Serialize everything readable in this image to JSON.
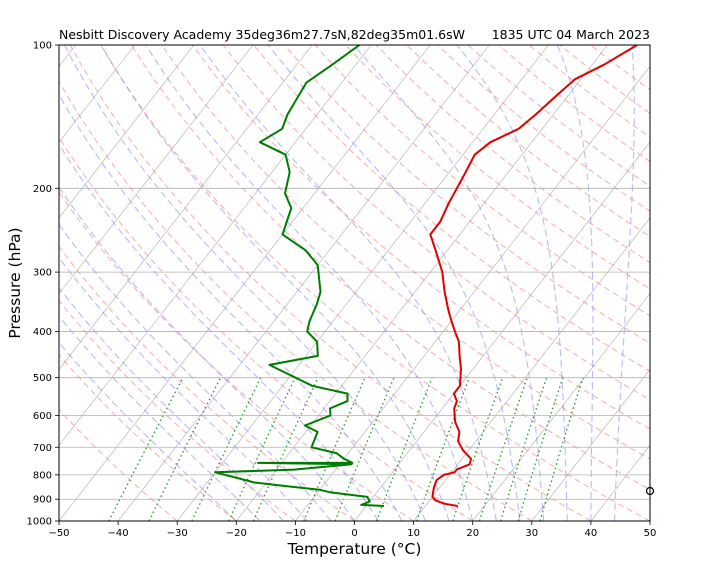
{
  "chart_data": {
    "type": "line",
    "subtype": "skew-T log-P sounding",
    "title_left": "Nesbitt Discovery Academy 35deg36m27.7sN,82deg35m01.6sW",
    "title_right": "1835 UTC 04 March 2023",
    "xlabel": "Temperature (°C)",
    "ylabel": "Pressure (hPa)",
    "xlim": [
      -50,
      50
    ],
    "ylim": [
      1000,
      100
    ],
    "y_scale": "log",
    "x_ticks": [
      -50,
      -40,
      -30,
      -20,
      -10,
      0,
      10,
      20,
      30,
      40,
      50
    ],
    "y_ticks": [
      1000,
      900,
      800,
      700,
      600,
      500,
      400,
      300,
      200,
      100
    ],
    "grid": true,
    "colors": {
      "temperature": "#e00000",
      "dewpoint": "#007a00",
      "isotherms": "#999999",
      "dry_adiabats": "#f08080",
      "moist_adiabats": "#7f7fff",
      "mixing_ratio": "#008000",
      "barbs": "#000000"
    },
    "series": [
      {
        "name": "",
        "kind": "temperature",
        "points": [
          [
            15.5,
            930
          ],
          [
            13,
            920
          ],
          [
            11,
            905
          ],
          [
            10,
            890
          ],
          [
            9,
            850
          ],
          [
            8.5,
            820
          ],
          [
            9,
            800
          ],
          [
            10.5,
            790
          ],
          [
            10.5,
            780
          ],
          [
            12,
            760
          ],
          [
            11.5,
            740
          ],
          [
            9,
            710
          ],
          [
            7,
            680
          ],
          [
            6,
            650
          ],
          [
            4,
            620
          ],
          [
            3,
            600
          ],
          [
            2,
            580
          ],
          [
            1.5,
            560
          ],
          [
            0,
            540
          ],
          [
            0,
            520
          ],
          [
            -2,
            480
          ],
          [
            -4,
            450
          ],
          [
            -6,
            420
          ],
          [
            -8,
            400
          ],
          [
            -10,
            380
          ],
          [
            -12,
            360
          ],
          [
            -15,
            330
          ],
          [
            -18,
            300
          ],
          [
            -22,
            270
          ],
          [
            -25,
            250
          ],
          [
            -25,
            235
          ],
          [
            -26,
            215
          ],
          [
            -27,
            190
          ],
          [
            -28,
            170
          ],
          [
            -27,
            160
          ],
          [
            -24,
            150
          ],
          [
            -23,
            140
          ],
          [
            -22,
            128
          ],
          [
            -21,
            118
          ],
          [
            -18,
            110
          ],
          [
            -15,
            100
          ]
        ]
      },
      {
        "name": "",
        "kind": "dewpoint",
        "points": [
          [
            3,
            930
          ],
          [
            -1,
            925
          ],
          [
            0,
            910
          ],
          [
            -1,
            890
          ],
          [
            -8,
            870
          ],
          [
            -10,
            860
          ],
          [
            -16,
            845
          ],
          [
            -22,
            830
          ],
          [
            -30,
            790
          ],
          [
            -17,
            780
          ],
          [
            -8,
            760
          ],
          [
            -24,
            755
          ],
          [
            -8,
            755
          ],
          [
            -10,
            740
          ],
          [
            -12,
            720
          ],
          [
            -17,
            700
          ],
          [
            -18,
            650
          ],
          [
            -21,
            630
          ],
          [
            -18,
            600
          ],
          [
            -19,
            580
          ],
          [
            -17,
            560
          ],
          [
            -18,
            540
          ],
          [
            -25,
            520
          ],
          [
            -35,
            470
          ],
          [
            -28,
            450
          ],
          [
            -30,
            420
          ],
          [
            -33,
            400
          ],
          [
            -34,
            380
          ],
          [
            -35,
            350
          ],
          [
            -36,
            330
          ],
          [
            -40,
            290
          ],
          [
            -44,
            270
          ],
          [
            -50,
            250
          ],
          [
            -52,
            220
          ],
          [
            -55,
            205
          ],
          [
            -57,
            185
          ],
          [
            -60,
            170
          ],
          [
            -66,
            160
          ],
          [
            -64,
            150
          ],
          [
            -65,
            140
          ],
          [
            -66,
            120
          ],
          [
            -64,
            110
          ],
          [
            -62,
            100
          ]
        ]
      }
    ]
  }
}
